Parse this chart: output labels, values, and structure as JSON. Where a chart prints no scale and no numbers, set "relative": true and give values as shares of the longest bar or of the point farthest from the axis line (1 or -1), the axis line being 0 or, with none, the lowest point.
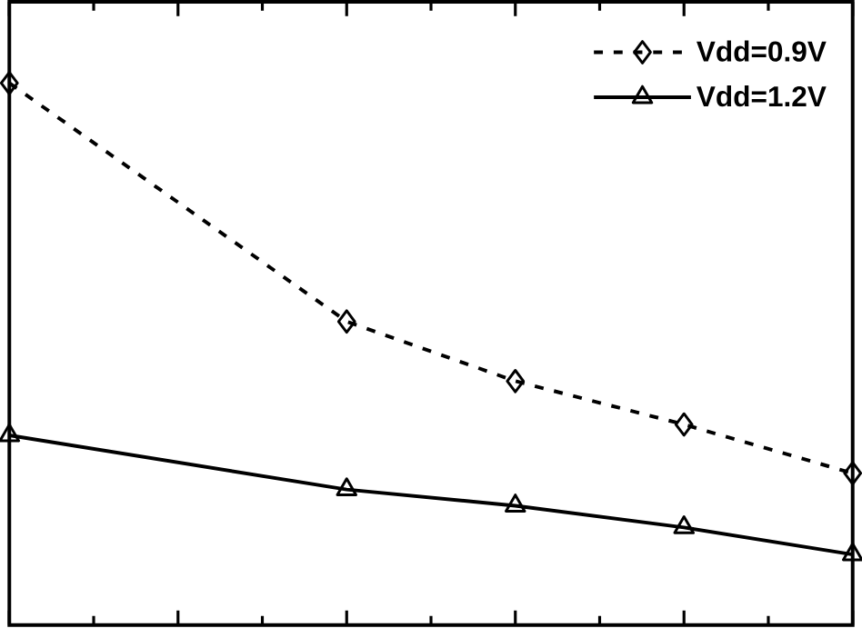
{
  "chart_data": {
    "type": "line",
    "relative": true,
    "categories": [
      null,
      null,
      null,
      null,
      null,
      null
    ],
    "legend": "top right",
    "series": [
      {
        "name": "Vdd=0.9V",
        "color": "#000000",
        "marker": "diamond",
        "line_style": "dashed",
        "values": [
          1,
          null,
          0.56,
          0.45,
          0.37,
          0.28
        ]
      },
      {
        "name": "Vdd=1.2V",
        "color": "#000000",
        "marker": "triangle",
        "line_style": "solid",
        "values": [
          0.35,
          null,
          0.25,
          0.22,
          0.18,
          0.13
        ]
      }
    ]
  }
}
